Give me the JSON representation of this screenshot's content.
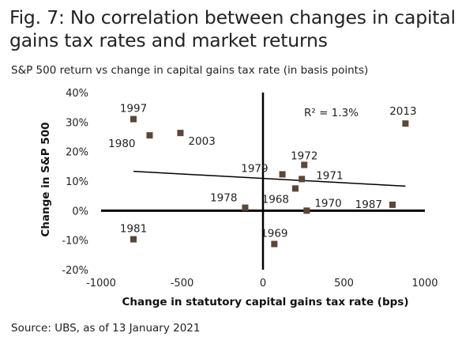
{
  "title": "Fig. 7: No correlation between changes in capital gains tax rates and market returns",
  "subtitle": "S&P 500 return vs change in capital gains tax rate (in basis points)",
  "source": "Source: UBS, as of 13 January 2021",
  "chart_data": {
    "type": "scatter",
    "xlabel": "Change in statutory capital gains tax rate (bps)",
    "ylabel": "Change in S&P 500",
    "xlim": [
      -1000,
      1000
    ],
    "ylim": [
      -20,
      40
    ],
    "xticks": [
      -1000,
      -500,
      0,
      500,
      1000
    ],
    "xtick_labels": [
      "-1000",
      "-500",
      "0",
      "500",
      "1000"
    ],
    "yticks": [
      -20,
      -10,
      0,
      10,
      20,
      30,
      40
    ],
    "ytick_labels": [
      "-20%",
      "-10%",
      "0%",
      "10%",
      "20%",
      "30%",
      "40%"
    ],
    "annotation": "R² = 1.3%",
    "trendline": {
      "x": [
        -800,
        880
      ],
      "y": [
        13.3,
        8.3
      ]
    },
    "points": [
      {
        "label": "1997",
        "x": -800,
        "y": 31
      },
      {
        "label": "1980",
        "x": -700,
        "y": 25.5
      },
      {
        "label": "2003",
        "x": -510,
        "y": 26.3
      },
      {
        "label": "2013",
        "x": 880,
        "y": 29.5
      },
      {
        "label": "1972",
        "x": 255,
        "y": 15.5
      },
      {
        "label": "1979",
        "x": 120,
        "y": 12.3
      },
      {
        "label": "1971",
        "x": 240,
        "y": 10.7
      },
      {
        "label": "1968",
        "x": 200,
        "y": 7.5
      },
      {
        "label": "1978",
        "x": -110,
        "y": 1
      },
      {
        "label": "1970",
        "x": 270,
        "y": 0
      },
      {
        "label": "1987",
        "x": 800,
        "y": 2
      },
      {
        "label": "1981",
        "x": -800,
        "y": -9.7
      },
      {
        "label": "1969",
        "x": 70,
        "y": -11.3
      }
    ],
    "colors": {
      "marker": "#5b4638",
      "axis": "#000000",
      "trendline": "#000000"
    }
  }
}
